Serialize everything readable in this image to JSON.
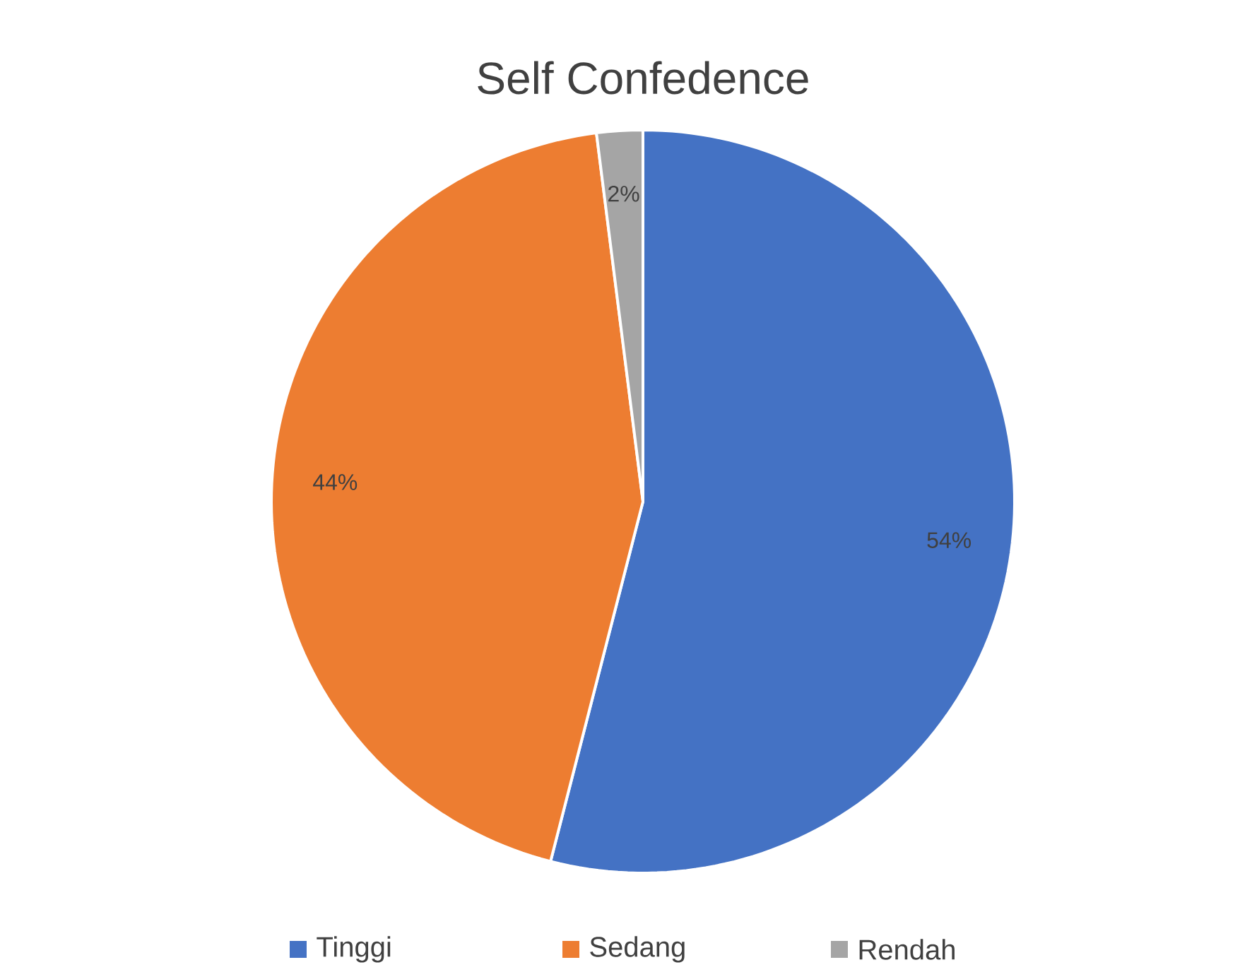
{
  "chart_data": {
    "type": "pie",
    "title": "Self Confedence",
    "categories": [
      "Tinggi",
      "Sedang",
      "Rendah"
    ],
    "values": [
      54,
      44,
      2
    ],
    "colors": [
      "#4472c4",
      "#ed7d31",
      "#a5a5a5"
    ],
    "value_labels": [
      "54%",
      "44%",
      "2%"
    ],
    "legend": "bottom"
  }
}
